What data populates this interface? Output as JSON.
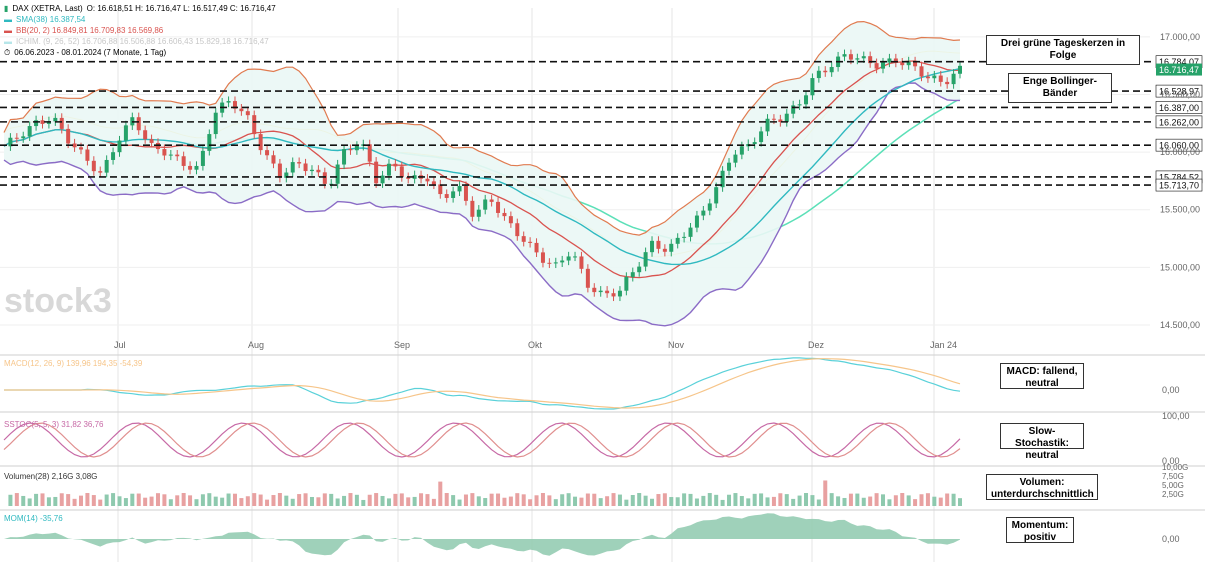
{
  "header": {
    "instrument": "DAX (XETRA, Last)",
    "ohlc": "O: 16.618,51  H: 16.716,47  L: 16.517,49  C: 16.716,47",
    "sma": "SMA(38)  16.387,54",
    "bb": "BB(20, 2)  16.849,81  16.709,83  16.569,86",
    "ichimoku": "ICHIM. (9, 26, 52)  16.706,88  16.506,88  16.606,43  15.829,18  16.716,47",
    "range": "06.06.2023 - 08.01.2024   (7 Monate, 1 Tag)"
  },
  "watermark": "stock3",
  "colors": {
    "up": "#26a269",
    "down": "#d9534f",
    "sma": "#2fb9c0",
    "bb_outer": "#8b6cc6",
    "bb_mid": "#d9534f",
    "bb_band": "#e07b50",
    "ichimoku_a": "#f1c40f",
    "ichimoku_b": "#5ce0b8",
    "cloud_bull": "#e6f7f0",
    "cloud_bear": "#fde6e6",
    "macd": "#5ad1d9",
    "signal": "#f6c58a",
    "stoch_k": "#c76aa6",
    "stoch_d": "#e08f8f",
    "mom_up": "#8ec9ae",
    "mom_down": "#e8a1a1"
  },
  "price_axis": {
    "ticks": [
      "17.000,00",
      "16.500,00",
      "16.000,00",
      "15.500,00",
      "15.000,00",
      "14.500,00"
    ]
  },
  "months": [
    "Jul",
    "Aug",
    "Sep",
    "Okt",
    "Nov",
    "Dez",
    "Jan 24"
  ],
  "levels": [
    {
      "label": "16.784,07"
    },
    {
      "label": "16.528,97"
    },
    {
      "label": "16.387,00"
    },
    {
      "label": "16.262,00"
    },
    {
      "label": "16.060,00"
    },
    {
      "label": "15.784,52"
    },
    {
      "label": "15.713,70"
    }
  ],
  "last_price_label": "16.716,47",
  "annotations": {
    "three_green": "Drei grüne Tageskerzen in Folge",
    "bollinger": "Enge Bollinger-Bänder",
    "macd": "MACD: fallend, neutral",
    "stoch": "Slow-Stochastik: neutral",
    "volume": "Volumen: unterdurchschnittlich",
    "momentum": "Momentum: positiv"
  },
  "panels": {
    "macd": {
      "legend": "MACD(12, 26, 9)  139,96  194,35  -54,39",
      "tick": "0,00"
    },
    "stoch": {
      "legend": "SSTOC(5, 5, 3)  31,82  36,76",
      "ticks": [
        "100,00",
        "0,00"
      ]
    },
    "volume": {
      "legend": "Volumen(28)  2,16G  3,08G",
      "ticks": [
        "10,00G",
        "7,50G",
        "5,00G",
        "2,50G"
      ]
    },
    "momentum": {
      "legend": "MOM(14)  -35,76",
      "tick": "0,00"
    }
  },
  "chart_data": {
    "type": "candlestick",
    "title": "DAX (XETRA, Last)",
    "period": "06.06.2023 - 08.01.2024",
    "ylim": [
      14300,
      17250
    ],
    "x": [
      "2023-06",
      "2023-07",
      "2023-08",
      "2023-09",
      "2023-10",
      "2023-11",
      "2023-12",
      "2024-01"
    ],
    "close_path": [
      16050,
      16150,
      16250,
      16300,
      16100,
      15950,
      15800,
      16100,
      16300,
      16050,
      16000,
      15900,
      15850,
      16350,
      16450,
      16300,
      16000,
      15800,
      15900,
      15850,
      15700,
      16000,
      16100,
      15750,
      15900,
      15750,
      15800,
      15600,
      15700,
      15450,
      15600,
      15400,
      15250,
      15100,
      15000,
      15150,
      14850,
      14750,
      14800,
      15000,
      15200,
      15150,
      15300,
      15450,
      15700,
      16000,
      16050,
      16250,
      16300,
      16400,
      16650,
      16750,
      16850,
      16800,
      16750,
      16800,
      16750,
      16650,
      16600,
      16716
    ],
    "horizontal_levels": [
      16784.07,
      16528.97,
      16387.0,
      16262.0,
      16060.0,
      15784.52,
      15713.7
    ],
    "indicators": {
      "sma38_last": 16387.54,
      "bb_upper_last": 16849.81,
      "bb_mid_last": 16709.83,
      "bb_lower_last": 16569.86,
      "macd_last": 139.96,
      "macd_signal_last": 194.35,
      "macd_hist_last": -54.39,
      "sstoch_k_last": 31.82,
      "sstoch_d_last": 36.76,
      "volume_last_G": 2.16,
      "volume_avg_G": 3.08,
      "momentum_last": -35.76
    }
  }
}
